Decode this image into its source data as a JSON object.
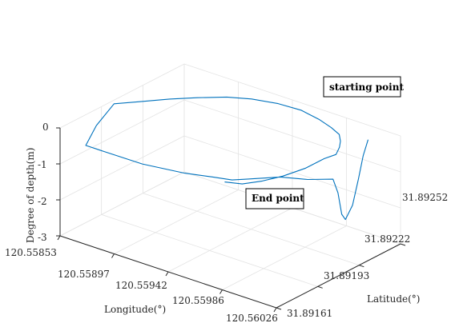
{
  "chart_data": {
    "type": "line",
    "projection": "3d",
    "title": "",
    "xlabel": "Longitude(°)",
    "ylabel": "Latitude(°)",
    "zlabel": "Degree of depth(m)",
    "x_ticks": [
      "120.55853",
      "120.55897",
      "120.55942",
      "120.55986",
      "120.56026"
    ],
    "y_ticks": [
      "31.89161",
      "31.89193",
      "31.89222",
      "31.89252"
    ],
    "z_ticks": [
      "0",
      "-1",
      "-2",
      "-3"
    ],
    "zlim": [
      -3,
      0
    ],
    "grid": true,
    "line_color": "#0072BD",
    "annotations": [
      {
        "text": "starting point"
      },
      {
        "text": "End point"
      }
    ],
    "series": [
      {
        "path": [
          [
            0.89,
            0.93,
            -0.2
          ],
          [
            0.885,
            0.9,
            -0.6
          ],
          [
            0.88,
            0.87,
            -1.2
          ],
          [
            0.87,
            0.84,
            -1.9
          ],
          [
            0.86,
            0.8,
            -2.25
          ],
          [
            0.86,
            0.77,
            -2.05
          ],
          [
            0.86,
            0.74,
            -1.4
          ],
          [
            0.86,
            0.7,
            -0.95
          ],
          [
            0.8,
            0.6,
            -0.9
          ],
          [
            0.72,
            0.52,
            -0.85
          ],
          [
            0.64,
            0.4,
            -0.85
          ],
          [
            0.6,
            0.34,
            -0.85
          ],
          [
            0.54,
            0.29,
            -0.8
          ],
          [
            0.45,
            0.22,
            -0.75
          ],
          [
            0.3,
            0.14,
            -0.65
          ],
          [
            0.15,
            0.12,
            -0.6
          ],
          [
            0.05,
            0.12,
            -0.6
          ],
          [
            0.03,
            0.24,
            -0.3
          ],
          [
            0.02,
            0.4,
            0.0
          ],
          [
            0.08,
            0.5,
            0.0
          ],
          [
            0.15,
            0.62,
            0.0
          ],
          [
            0.22,
            0.72,
            0.0
          ],
          [
            0.3,
            0.82,
            0.0
          ],
          [
            0.38,
            0.88,
            0.0
          ],
          [
            0.48,
            0.92,
            0.0
          ],
          [
            0.58,
            0.93,
            0.0
          ],
          [
            0.68,
            0.9,
            0.0
          ],
          [
            0.76,
            0.86,
            0.0
          ],
          [
            0.82,
            0.82,
            0.0
          ],
          [
            0.86,
            0.76,
            0.0
          ],
          [
            0.89,
            0.7,
            0.0
          ],
          [
            0.92,
            0.62,
            0.0
          ],
          [
            0.9,
            0.56,
            -0.05
          ],
          [
            0.86,
            0.48,
            -0.25
          ],
          [
            0.8,
            0.4,
            -0.45
          ],
          [
            0.74,
            0.34,
            -0.6
          ],
          [
            0.67,
            0.3,
            -0.75
          ],
          [
            0.6,
            0.28,
            -0.8
          ]
        ]
      }
    ]
  }
}
